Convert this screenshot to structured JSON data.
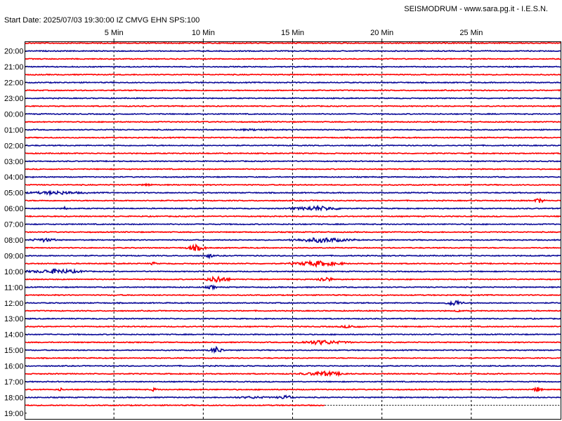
{
  "header": {
    "title": "SEISMODRUM - www.sara.pg.it - I.E.S.N.",
    "start_info": "Start Date: 2025/07/03 19:30:00 IZ CMVG EHN SPS:100"
  },
  "colors": {
    "trace_a": "#ff0000",
    "trace_b": "#0b0b99",
    "grid": "#000000"
  },
  "chart_data": {
    "type": "line",
    "subtype": "helicorder",
    "x_unit": "min",
    "xlim": [
      0,
      30
    ],
    "x_ticks": [
      {
        "value": 5,
        "label": "5 Min"
      },
      {
        "value": 10,
        "label": "10 Min"
      },
      {
        "value": 15,
        "label": "15 Min"
      },
      {
        "value": 20,
        "label": "20 Min"
      },
      {
        "value": 25,
        "label": "25 Min"
      }
    ],
    "grid": {
      "vertical": "dashed",
      "horizontal": false
    },
    "row_minutes": 30,
    "rows": 48,
    "rows_drawn": 47,
    "last_row_fraction": 0.56,
    "y_labels": [
      {
        "row": 1,
        "label": "20:00"
      },
      {
        "row": 3,
        "label": "21:00"
      },
      {
        "row": 5,
        "label": "22:00"
      },
      {
        "row": 7,
        "label": "23:00"
      },
      {
        "row": 9,
        "label": "00:00"
      },
      {
        "row": 11,
        "label": "01:00"
      },
      {
        "row": 13,
        "label": "02:00"
      },
      {
        "row": 15,
        "label": "03:00"
      },
      {
        "row": 17,
        "label": "04:00"
      },
      {
        "row": 19,
        "label": "05:00"
      },
      {
        "row": 21,
        "label": "06:00"
      },
      {
        "row": 23,
        "label": "07:00"
      },
      {
        "row": 25,
        "label": "08:00"
      },
      {
        "row": 27,
        "label": "09:00"
      },
      {
        "row": 29,
        "label": "10:00"
      },
      {
        "row": 31,
        "label": "11:00"
      },
      {
        "row": 33,
        "label": "12:00"
      },
      {
        "row": 35,
        "label": "13:00"
      },
      {
        "row": 37,
        "label": "14:00"
      },
      {
        "row": 39,
        "label": "15:00"
      },
      {
        "row": 41,
        "label": "16:00"
      },
      {
        "row": 43,
        "label": "17:00"
      },
      {
        "row": 45,
        "label": "18:00"
      },
      {
        "row": 47,
        "label": "19:00"
      }
    ],
    "events": [
      {
        "row": 11,
        "start_min": 11.5,
        "end_min": 14,
        "amp": 0.3
      },
      {
        "row": 17,
        "start_min": 0.3,
        "end_min": 0.6,
        "amp": 0.4
      },
      {
        "row": 18,
        "start_min": 6.5,
        "end_min": 7.2,
        "amp": 0.6
      },
      {
        "row": 19,
        "start_min": 0,
        "end_min": 3.5,
        "amp": 0.9
      },
      {
        "row": 20,
        "start_min": 28.5,
        "end_min": 29.1,
        "amp": 1.5
      },
      {
        "row": 21,
        "start_min": 2.1,
        "end_min": 2.4,
        "amp": 1.0
      },
      {
        "row": 21,
        "start_min": 14.8,
        "end_min": 18,
        "amp": 1.3
      },
      {
        "row": 25,
        "start_min": 0.2,
        "end_min": 2,
        "amp": 0.9
      },
      {
        "row": 25,
        "start_min": 14.8,
        "end_min": 18.5,
        "amp": 1.4
      },
      {
        "row": 26,
        "start_min": 9,
        "end_min": 10.2,
        "amp": 1.7
      },
      {
        "row": 27,
        "start_min": 10.1,
        "end_min": 10.6,
        "amp": 1.2
      },
      {
        "row": 28,
        "start_min": 14.8,
        "end_min": 18,
        "amp": 1.5
      },
      {
        "row": 28,
        "start_min": 7,
        "end_min": 7.4,
        "amp": 0.8
      },
      {
        "row": 29,
        "start_min": 0,
        "end_min": 3.6,
        "amp": 1.3
      },
      {
        "row": 30,
        "start_min": 10.1,
        "end_min": 11.5,
        "amp": 2.0
      },
      {
        "row": 30,
        "start_min": 16.3,
        "end_min": 17.3,
        "amp": 1.6
      },
      {
        "row": 31,
        "start_min": 10.1,
        "end_min": 10.8,
        "amp": 1.0
      },
      {
        "row": 33,
        "start_min": 23.5,
        "end_min": 24.6,
        "amp": 1.7
      },
      {
        "row": 34,
        "start_min": 24.1,
        "end_min": 24.4,
        "amp": 0.8
      },
      {
        "row": 36,
        "start_min": 17.5,
        "end_min": 19,
        "amp": 0.7
      },
      {
        "row": 38,
        "start_min": 15,
        "end_min": 18.3,
        "amp": 1.2
      },
      {
        "row": 39,
        "start_min": 10.3,
        "end_min": 11.2,
        "amp": 1.9
      },
      {
        "row": 42,
        "start_min": 15.4,
        "end_min": 18.2,
        "amp": 1.3
      },
      {
        "row": 44,
        "start_min": 28.4,
        "end_min": 29.0,
        "amp": 1.3
      },
      {
        "row": 44,
        "start_min": 1.8,
        "end_min": 2.2,
        "amp": 0.8
      },
      {
        "row": 44,
        "start_min": 7.0,
        "end_min": 7.5,
        "amp": 0.9
      },
      {
        "row": 45,
        "start_min": 14.1,
        "end_min": 15.2,
        "amp": 1.2
      },
      {
        "row": 45,
        "start_min": 11.5,
        "end_min": 14.0,
        "amp": 0.5
      }
    ]
  }
}
